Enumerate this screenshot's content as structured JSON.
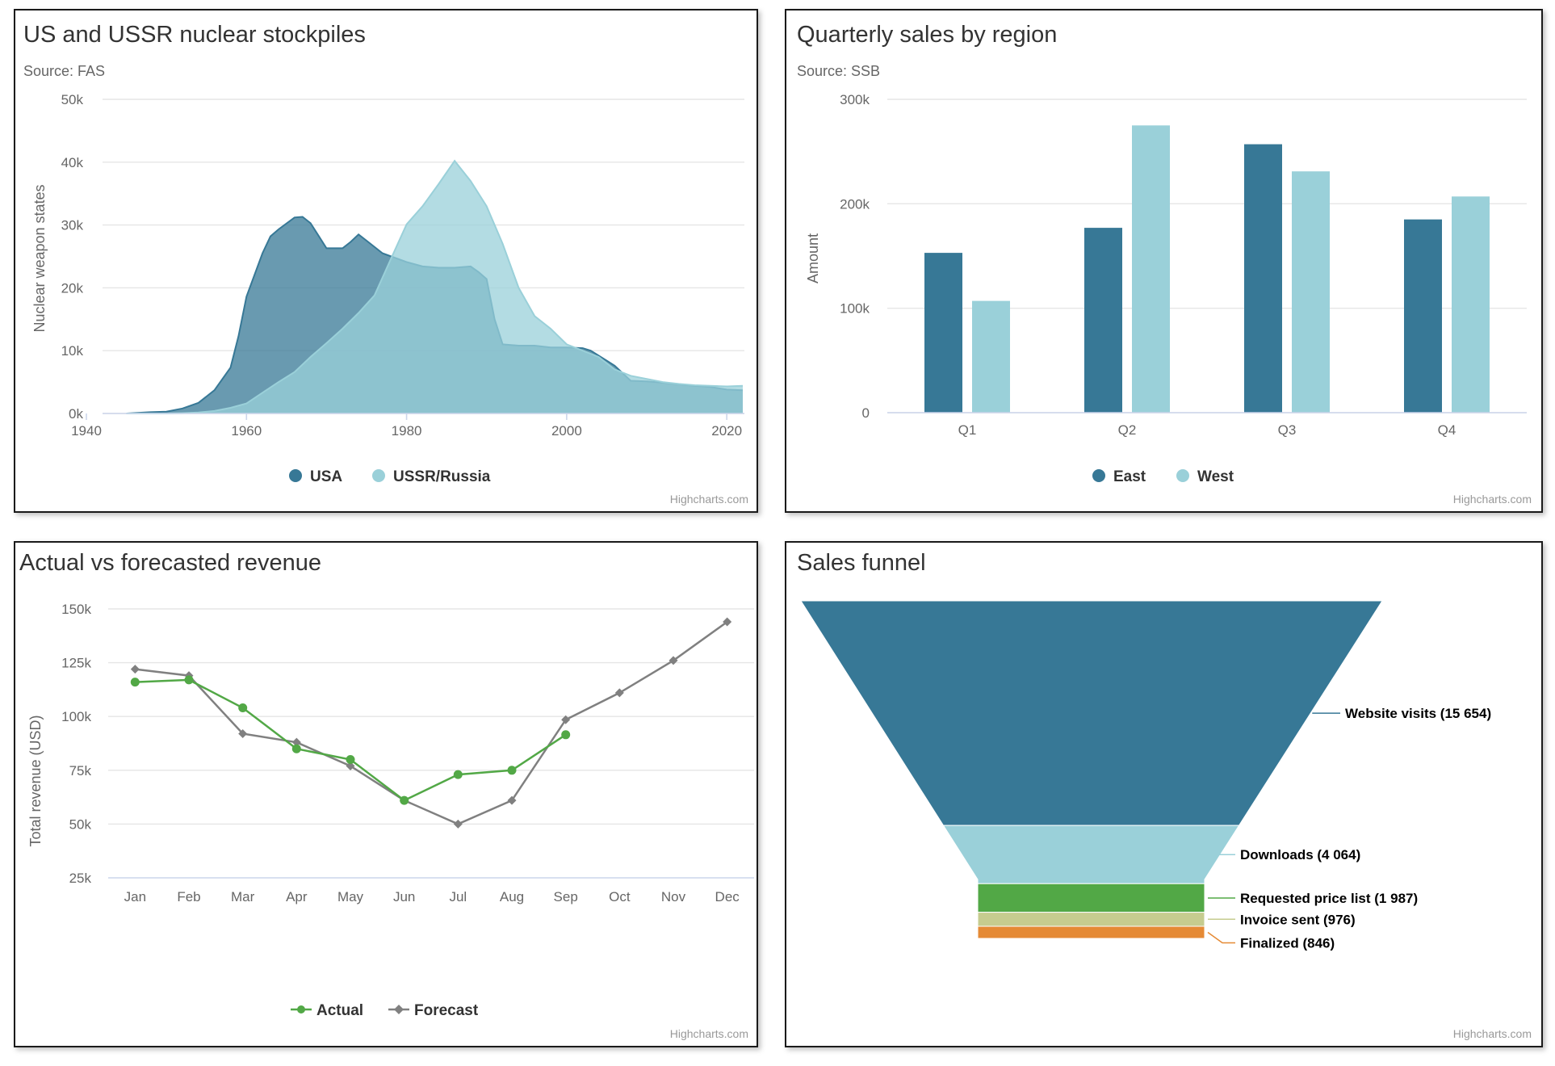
{
  "credit": "Highcharts.com",
  "colors": {
    "dark_blue": "#377896",
    "light_blue": "#9ad0d9",
    "green": "#52a846",
    "gray": "#808080",
    "pale_green": "#c6cc8f",
    "orange": "#e58a35"
  },
  "chart_data": [
    {
      "type": "area",
      "title": "US and USSR nuclear stockpiles",
      "subtitle": "Source: FAS",
      "ylabel": "Nuclear weapon states",
      "xlabel": "",
      "xlim": [
        1940,
        2022
      ],
      "ylim": [
        0,
        50000
      ],
      "x_ticks": [
        1940,
        1960,
        1980,
        2000,
        2020
      ],
      "y_ticks": [
        0,
        10000,
        20000,
        30000,
        40000,
        50000
      ],
      "y_tick_labels": [
        "0k",
        "10k",
        "20k",
        "30k",
        "40k",
        "50k"
      ],
      "series": [
        {
          "name": "USA",
          "color": "#377896",
          "x": [
            1945,
            1948,
            1950,
            1952,
            1954,
            1956,
            1958,
            1959,
            1960,
            1962,
            1963,
            1964,
            1966,
            1967,
            1968,
            1969,
            1970,
            1972,
            1973,
            1974,
            1975,
            1977,
            1980,
            1982,
            1984,
            1986,
            1988,
            1989,
            1990,
            1991,
            1992,
            1994,
            1996,
            1998,
            2000,
            2002,
            2003,
            2005,
            2006,
            2008,
            2010,
            2012,
            2015,
            2018,
            2020,
            2022
          ],
          "values": [
            6,
            200,
            300,
            800,
            1700,
            3700,
            7300,
            12300,
            18600,
            25500,
            28200,
            29300,
            31200,
            31300,
            30300,
            28300,
            26300,
            26300,
            27300,
            28500,
            27500,
            25500,
            24100,
            23400,
            23200,
            23200,
            23400,
            22500,
            21400,
            15000,
            11000,
            10800,
            10800,
            10500,
            10500,
            10400,
            10000,
            8400,
            7600,
            5200,
            5100,
            4900,
            4500,
            4200,
            3800,
            3700
          ]
        },
        {
          "name": "USSR/Russia",
          "color": "#9ad0d9",
          "x": [
            1945,
            1949,
            1950,
            1952,
            1954,
            1956,
            1958,
            1960,
            1962,
            1964,
            1966,
            1968,
            1970,
            1972,
            1974,
            1976,
            1978,
            1980,
            1982,
            1984,
            1986,
            1988,
            1990,
            1992,
            1994,
            1996,
            1998,
            2000,
            2002,
            2004,
            2006,
            2008,
            2010,
            2012,
            2014,
            2016,
            2018,
            2020,
            2022
          ],
          "values": [
            0,
            1,
            5,
            50,
            150,
            400,
            900,
            1600,
            3300,
            5000,
            6600,
            9000,
            11200,
            13500,
            16000,
            18800,
            24500,
            30100,
            33000,
            36500,
            40200,
            37000,
            33000,
            27000,
            20000,
            15500,
            13500,
            11000,
            10000,
            9000,
            7000,
            6000,
            5500,
            5000,
            4700,
            4500,
            4400,
            4300,
            4400
          ]
        }
      ],
      "legend": [
        "USA",
        "USSR/Russia"
      ]
    },
    {
      "type": "bar",
      "title": "Quarterly sales by region",
      "subtitle": "Source: SSB",
      "ylabel": "Amount",
      "xlabel": "",
      "ylim": [
        0,
        300000
      ],
      "y_ticks": [
        0,
        100000,
        200000,
        300000
      ],
      "y_tick_labels": [
        "0",
        "100k",
        "200k",
        "300k"
      ],
      "categories": [
        "Q1",
        "Q2",
        "Q3",
        "Q4"
      ],
      "series": [
        {
          "name": "East",
          "color": "#377896",
          "values": [
            153000,
            177000,
            257000,
            185000
          ]
        },
        {
          "name": "West",
          "color": "#9ad0d9",
          "values": [
            107000,
            275000,
            231000,
            207000
          ]
        }
      ],
      "legend": [
        "East",
        "West"
      ]
    },
    {
      "type": "line",
      "title": "Actual vs forecasted revenue",
      "ylabel": "Total revenue (USD)",
      "xlabel": "",
      "ylim": [
        25000,
        150000
      ],
      "y_ticks": [
        25000,
        50000,
        75000,
        100000,
        125000,
        150000
      ],
      "y_tick_labels": [
        "25k",
        "50k",
        "75k",
        "100k",
        "125k",
        "150k"
      ],
      "categories": [
        "Jan",
        "Feb",
        "Mar",
        "Apr",
        "May",
        "Jun",
        "Jul",
        "Aug",
        "Sep",
        "Oct",
        "Nov",
        "Dec"
      ],
      "series": [
        {
          "name": "Actual",
          "color": "#52a846",
          "marker": "circle",
          "values": [
            116000,
            117000,
            104000,
            85000,
            80000,
            61000,
            73000,
            75000,
            91500,
            null,
            null,
            null
          ]
        },
        {
          "name": "Forecast",
          "color": "#808080",
          "marker": "diamond",
          "values": [
            122000,
            119000,
            92000,
            88000,
            77000,
            61000,
            50000,
            61000,
            98500,
            111000,
            126000,
            144000
          ]
        }
      ],
      "legend": [
        "Actual",
        "Forecast"
      ]
    },
    {
      "type": "funnel",
      "title": "Sales funnel",
      "stages": [
        {
          "name": "Website visits",
          "value": 15654,
          "label": "Website visits (15 654)",
          "color": "#377896"
        },
        {
          "name": "Downloads",
          "value": 4064,
          "label": "Downloads (4 064)",
          "color": "#9ad0d9"
        },
        {
          "name": "Requested price list",
          "value": 1987,
          "label": "Requested price list (1 987)",
          "color": "#52a846"
        },
        {
          "name": "Invoice sent",
          "value": 976,
          "label": "Invoice sent (976)",
          "color": "#c6cc8f"
        },
        {
          "name": "Finalized",
          "value": 846,
          "label": "Finalized (846)",
          "color": "#e58a35"
        }
      ]
    }
  ]
}
